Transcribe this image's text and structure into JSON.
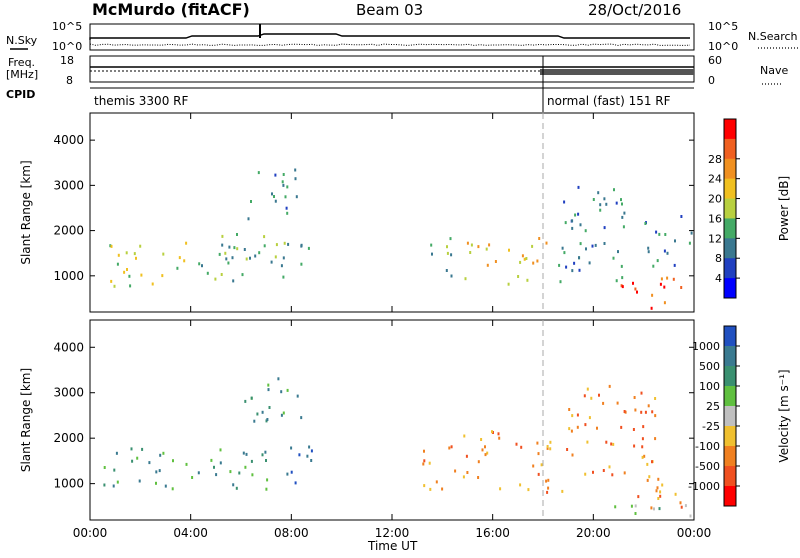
{
  "header": {
    "station": "McMurdo (fitACF)",
    "beam": "Beam 03",
    "date": "28/Oct/2016"
  },
  "param_panels": {
    "nsky_label": "N.Sky",
    "nsearch_label": "N.Search",
    "freq_label_top": "Freq.",
    "freq_label_bottom": "[MHz]",
    "nave_label": "Nave",
    "cpid_label": "CPID",
    "noise_ticks_left": [
      "10^5",
      "10^0"
    ],
    "noise_ticks_right": [
      "10^5",
      "10^0"
    ],
    "freq_ticks": [
      "18",
      "8"
    ],
    "nave_ticks": [
      "60",
      "0"
    ],
    "cpid_segments": [
      {
        "label": "themis 3300 RF",
        "start_hour": 0,
        "end_hour": 18.0
      },
      {
        "label": "normal (fast) 151 RF",
        "start_hour": 18.0,
        "end_hour": 24
      }
    ]
  },
  "chart_data": [
    {
      "type": "heatmap",
      "name": "power",
      "xlabel": "Time UT",
      "ylabel": "Slant Range [km]",
      "xlim": [
        0,
        24
      ],
      "ylim": [
        200,
        4600
      ],
      "x_ticks": [
        "00:00",
        "04:00",
        "08:00",
        "12:00",
        "16:00",
        "20:00",
        "00:00"
      ],
      "x_tick_hours": [
        0,
        4,
        8,
        12,
        16,
        20,
        24
      ],
      "y_ticks": [
        1000,
        2000,
        3000,
        4000
      ],
      "colorbar": {
        "label": "Power [dB]",
        "tick_labels": [
          "4",
          "8",
          "12",
          "16",
          "20",
          "24",
          "28"
        ],
        "colors": [
          "#0000ff",
          "#2040c0",
          "#3a7890",
          "#44aa66",
          "#b8d040",
          "#f0c020",
          "#f09020",
          "#f06020",
          "#ff0000"
        ]
      },
      "scatter_blobs": [
        {
          "t0": 0.7,
          "t1": 3.8,
          "r0": 800,
          "r1": 1800,
          "level": 4
        },
        {
          "t0": 4.0,
          "t1": 6.2,
          "r0": 900,
          "r1": 1700,
          "level": 3
        },
        {
          "t0": 5.2,
          "t1": 7.4,
          "r0": 1300,
          "r1": 2300,
          "level": 3
        },
        {
          "t0": 6.2,
          "t1": 8.2,
          "r0": 2300,
          "r1": 3400,
          "level": 2
        },
        {
          "t0": 7.4,
          "t1": 8.8,
          "r0": 900,
          "r1": 1800,
          "level": 3
        },
        {
          "t0": 13.5,
          "t1": 14.6,
          "r0": 900,
          "r1": 1900,
          "level": 3
        },
        {
          "t0": 14.8,
          "t1": 16.2,
          "r0": 900,
          "r1": 1800,
          "level": 5
        },
        {
          "t0": 16.5,
          "t1": 18.2,
          "r0": 800,
          "r1": 1900,
          "level": 5
        },
        {
          "t0": 18.5,
          "t1": 21.5,
          "r0": 900,
          "r1": 3000,
          "level": 2
        },
        {
          "t0": 21.0,
          "t1": 23.9,
          "r0": 300,
          "r1": 1000,
          "level": 7
        },
        {
          "t0": 22.0,
          "t1": 23.9,
          "r0": 1200,
          "r1": 2400,
          "level": 2
        }
      ]
    },
    {
      "type": "heatmap",
      "name": "velocity",
      "xlabel": "Time UT",
      "ylabel": "Slant Range [km]",
      "xlim": [
        0,
        24
      ],
      "ylim": [
        200,
        4600
      ],
      "x_ticks": [
        "00:00",
        "04:00",
        "08:00",
        "12:00",
        "16:00",
        "20:00",
        "00:00"
      ],
      "x_tick_hours": [
        0,
        4,
        8,
        12,
        16,
        20,
        24
      ],
      "y_ticks": [
        1000,
        2000,
        3000,
        4000
      ],
      "colorbar": {
        "label": "Velocity [m s⁻¹]",
        "tick_labels": [
          "1000",
          "500",
          "100",
          "25",
          "-25",
          "-100",
          "-500",
          "-1000"
        ],
        "colors": [
          "#2050c0",
          "#3a7a90",
          "#3a9070",
          "#60c040",
          "#c0c0c0",
          "#f0c030",
          "#f08020",
          "#f05020",
          "#ff0000"
        ]
      },
      "scatter_blobs": [
        {
          "t0": 0.5,
          "t1": 3.8,
          "r0": 900,
          "r1": 1800,
          "level": 2
        },
        {
          "t0": 4.0,
          "t1": 7.2,
          "r0": 900,
          "r1": 1800,
          "level": 2
        },
        {
          "t0": 6.0,
          "t1": 8.5,
          "r0": 2400,
          "r1": 3400,
          "level": 2
        },
        {
          "t0": 7.8,
          "t1": 9.0,
          "r0": 900,
          "r1": 1900,
          "level": 0
        },
        {
          "t0": 13.2,
          "t1": 14.6,
          "r0": 900,
          "r1": 2000,
          "level": 6
        },
        {
          "t0": 14.8,
          "t1": 16.5,
          "r0": 900,
          "r1": 2200,
          "level": 6
        },
        {
          "t0": 16.8,
          "t1": 19.0,
          "r0": 800,
          "r1": 2000,
          "level": 6
        },
        {
          "t0": 19.0,
          "t1": 22.5,
          "r0": 1200,
          "r1": 3200,
          "level": 6
        },
        {
          "t0": 21.5,
          "t1": 23.9,
          "r0": 400,
          "r1": 1200,
          "level": 6
        },
        {
          "t0": 20.0,
          "t1": 23.9,
          "r0": 300,
          "r1": 600,
          "level": 3
        }
      ]
    }
  ],
  "xlabel": "Time UT"
}
